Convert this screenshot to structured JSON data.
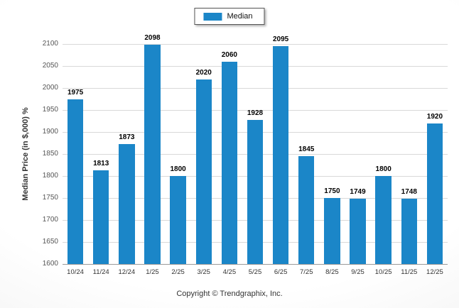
{
  "legend": {
    "label": "Median"
  },
  "ylabel": "Median Price (in $,000) %",
  "footer": "Copyright © Trendgraphix, Inc.",
  "colors": {
    "bar": "#1b86c8",
    "gridline": "#d9d9d9",
    "axis": "#9a9a9a"
  },
  "chart_data": {
    "type": "bar",
    "title": "",
    "series_name": "Median",
    "categories": [
      "10/24",
      "11/24",
      "12/24",
      "1/25",
      "2/25",
      "3/25",
      "4/25",
      "5/25",
      "6/25",
      "7/25",
      "8/25",
      "9/25",
      "10/25",
      "11/25",
      "12/25"
    ],
    "values": [
      1975,
      1813,
      1873,
      2098,
      1800,
      2020,
      2060,
      1928,
      2095,
      1845,
      1750,
      1749,
      1800,
      1748,
      1920
    ],
    "xlabel": "",
    "ylabel": "Median Price (in $,000) %",
    "ylim": [
      1600,
      2100
    ],
    "ytick_step": 50,
    "grid": true,
    "legend_position": "top",
    "bar_color": "#1b86c8",
    "value_labels": true
  }
}
